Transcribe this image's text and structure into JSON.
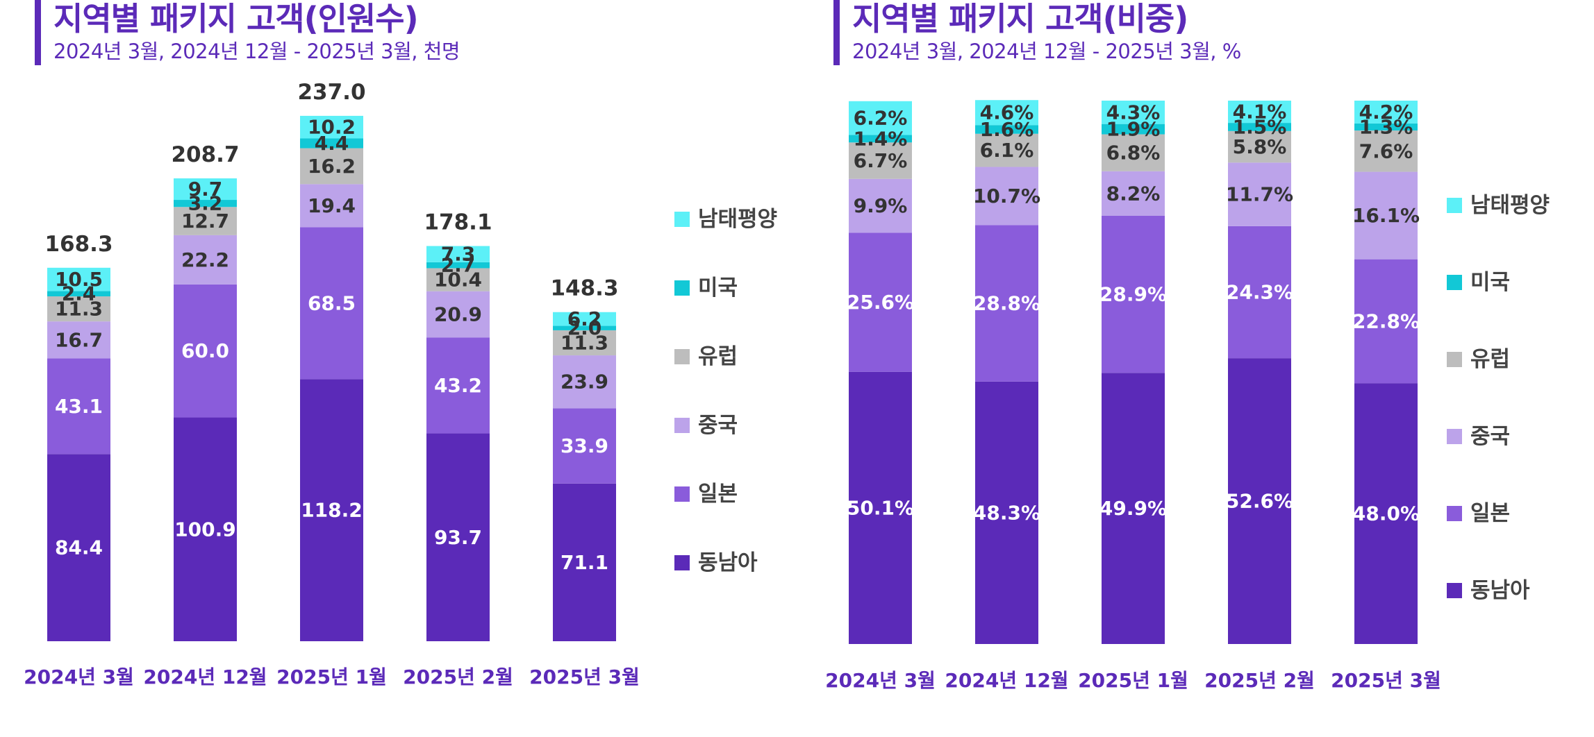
{
  "colors": {
    "southeast_asia": "#5b2ab8",
    "japan": "#8a5cdb",
    "china": "#bca3ea",
    "europe": "#bdbdbd",
    "usa": "#12c8d6",
    "south_pacific": "#5cf0f7",
    "title": "#5b2ab8"
  },
  "left": {
    "title": "지역별 패키지 고객(인원수)",
    "subtitle": "2024년 3월, 2024년 12월 - 2025년 3월, 천명"
  },
  "right": {
    "title": "지역별 패키지 고객(비중)",
    "subtitle": "2024년 3월, 2024년 12월 - 2025년 3월, %"
  },
  "chart_data": [
    {
      "type": "bar",
      "stacked": true,
      "title": "지역별 패키지 고객(인원수)",
      "subtitle": "2024년 3월, 2024년 12월 - 2025년 3월, 천명",
      "categories": [
        "2024년 3월",
        "2024년 12월",
        "2025년 1월",
        "2025년 2월",
        "2025년 3월"
      ],
      "series": [
        {
          "name": "동남아",
          "color": "#5b2ab8",
          "values": [
            84.4,
            100.9,
            118.2,
            93.7,
            71.1
          ],
          "labels": [
            "84.4",
            "100.9",
            "118.2",
            "93.7",
            "71.1"
          ]
        },
        {
          "name": "일본",
          "color": "#8a5cdb",
          "values": [
            43.1,
            60.0,
            68.5,
            43.2,
            33.9
          ],
          "labels": [
            "43.1",
            "60.0",
            "68.5",
            "43.2",
            "33.9"
          ]
        },
        {
          "name": "중국",
          "color": "#bca3ea",
          "values": [
            16.7,
            22.2,
            19.4,
            20.9,
            23.9
          ],
          "labels": [
            "16.7",
            "22.2",
            "19.4",
            "20.9",
            "23.9"
          ]
        },
        {
          "name": "유럽",
          "color": "#bdbdbd",
          "values": [
            11.3,
            12.7,
            16.2,
            10.4,
            11.3
          ],
          "labels": [
            "11.3",
            "12.7",
            "16.2",
            "10.4",
            "11.3"
          ]
        },
        {
          "name": "미국",
          "color": "#12c8d6",
          "values": [
            2.4,
            3.2,
            4.4,
            2.7,
            2.0
          ],
          "labels": [
            "2.4",
            "3.2",
            "4.4",
            "2.7",
            "2.0"
          ]
        },
        {
          "name": "남태평양",
          "color": "#5cf0f7",
          "values": [
            10.5,
            9.7,
            10.2,
            7.3,
            6.2
          ],
          "labels": [
            "10.5",
            "9.7",
            "10.2",
            "7.3",
            "6.2"
          ]
        }
      ],
      "totals": [
        "168.3",
        "208.7",
        "237.0",
        "178.1",
        "148.3"
      ],
      "ylim": [
        0,
        240
      ],
      "legend_position": "right",
      "grid": false
    },
    {
      "type": "bar",
      "stacked": true,
      "percent": true,
      "title": "지역별 패키지 고객(비중)",
      "subtitle": "2024년 3월, 2024년 12월 - 2025년 3월, %",
      "categories": [
        "2024년 3월",
        "2024년 12월",
        "2025년 1월",
        "2025년 2월",
        "2025년 3월"
      ],
      "series": [
        {
          "name": "동남아",
          "color": "#5b2ab8",
          "values": [
            50.1,
            48.3,
            49.9,
            52.6,
            48.0
          ],
          "labels": [
            "50.1%",
            "48.3%",
            "49.9%",
            "52.6%",
            "48.0%"
          ]
        },
        {
          "name": "일본",
          "color": "#8a5cdb",
          "values": [
            25.6,
            28.8,
            28.9,
            24.3,
            22.8
          ],
          "labels": [
            "25.6%",
            "28.8%",
            "28.9%",
            "24.3%",
            "22.8%"
          ]
        },
        {
          "name": "중국",
          "color": "#bca3ea",
          "values": [
            9.9,
            10.7,
            8.2,
            11.7,
            16.1
          ],
          "labels": [
            "9.9%",
            "10.7%",
            "8.2%",
            "11.7%",
            "16.1%"
          ]
        },
        {
          "name": "유럽",
          "color": "#bdbdbd",
          "values": [
            6.7,
            6.1,
            6.8,
            5.8,
            7.6
          ],
          "labels": [
            "6.7%",
            "6.1%",
            "6.8%",
            "5.8%",
            "7.6%"
          ]
        },
        {
          "name": "미국",
          "color": "#12c8d6",
          "values": [
            1.4,
            1.6,
            1.9,
            1.5,
            1.3
          ],
          "labels": [
            "1.4%",
            "1.6%",
            "1.9%",
            "1.5%",
            "1.3%"
          ]
        },
        {
          "name": "남태평양",
          "color": "#5cf0f7",
          "values": [
            6.2,
            4.6,
            4.3,
            4.1,
            4.2
          ],
          "labels": [
            "6.2%",
            "4.6%",
            "4.3%",
            "4.1%",
            "4.2%"
          ]
        }
      ],
      "ylim": [
        0,
        100
      ],
      "legend_position": "right",
      "grid": false
    }
  ]
}
